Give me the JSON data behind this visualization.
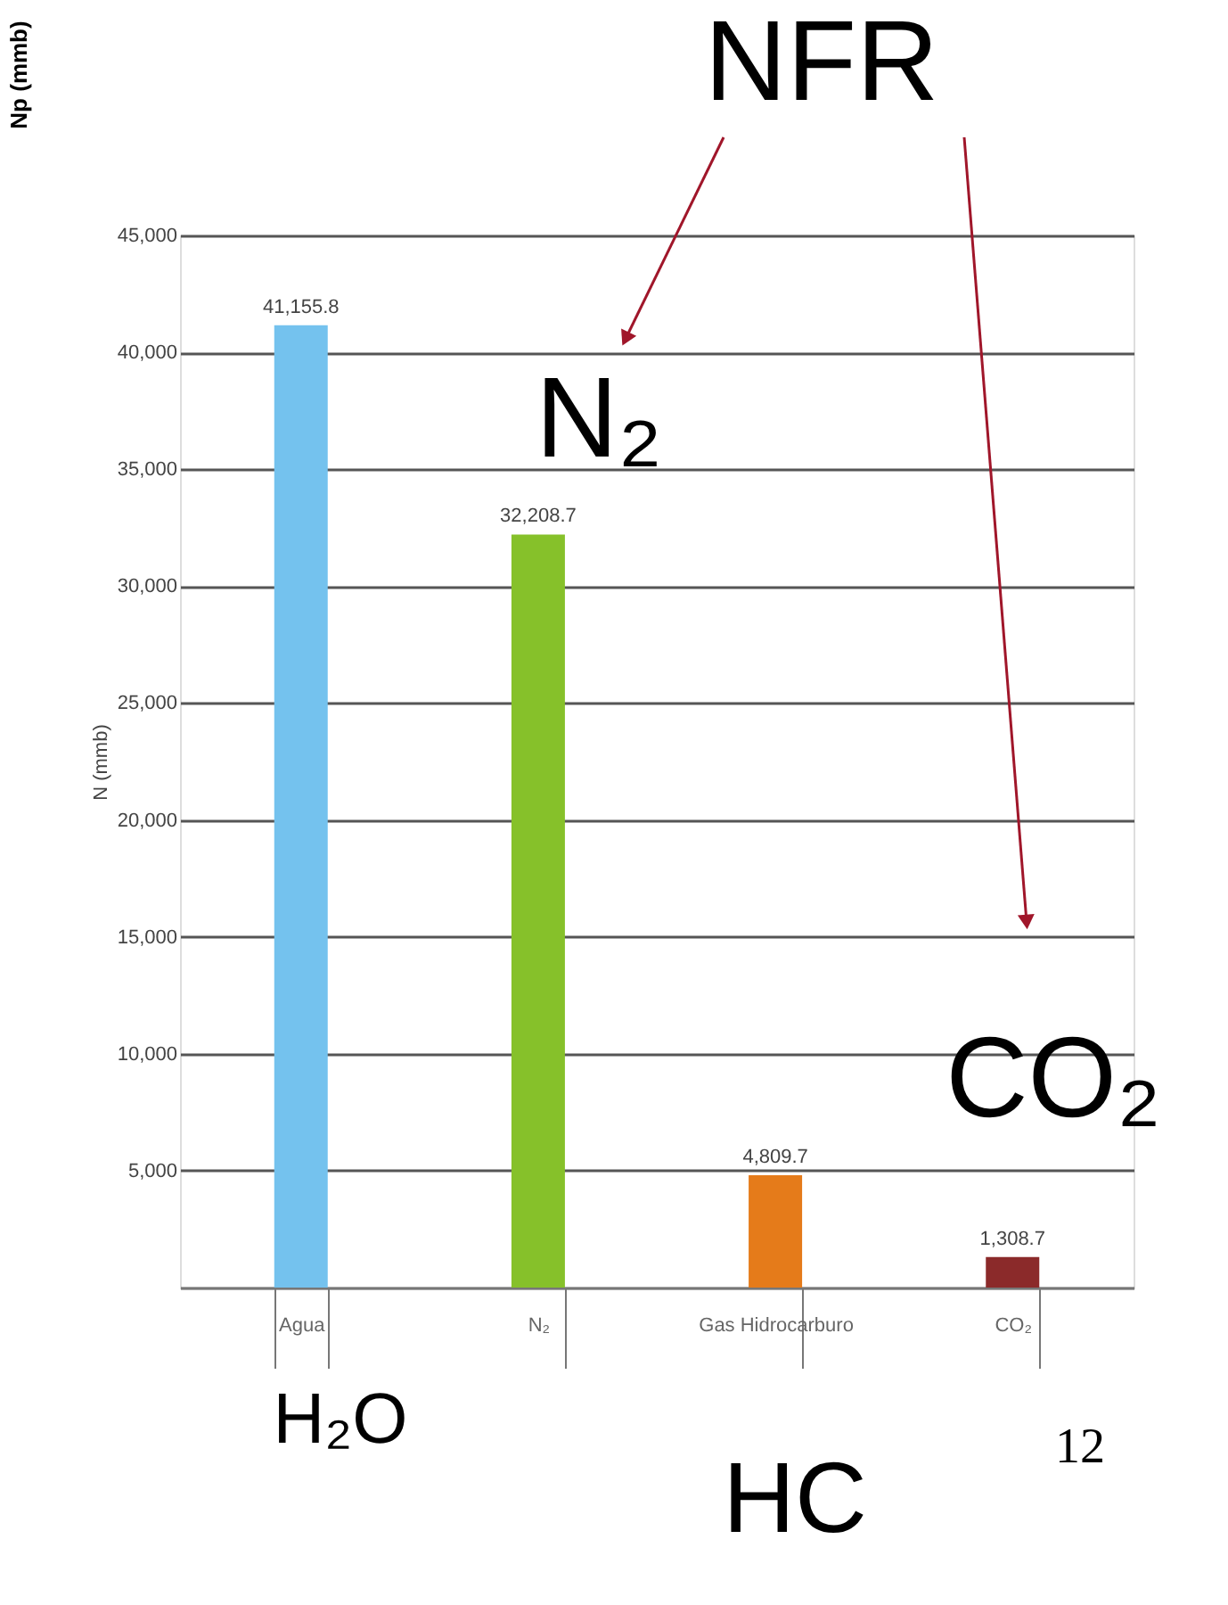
{
  "chart_data": {
    "type": "bar",
    "categories": [
      "Agua",
      "N₂",
      "Gas Hidrocarburo",
      "CO₂"
    ],
    "values": [
      41155.8,
      32208.7,
      4809.7,
      1308.7
    ],
    "value_labels": [
      "41,155.8",
      "32,208.7",
      "4,809.7",
      "1,308.7"
    ],
    "colors": [
      "#74c2ee",
      "#86c12a",
      "#e57b1a",
      "#8b2a2a"
    ],
    "ylabel": "N (mmb)",
    "ylim": [
      0,
      45000
    ],
    "yticks": [
      {
        "value": 0,
        "label": null
      },
      {
        "value": 5000,
        "label": "5,000"
      },
      {
        "value": 10000,
        "label": "10,000"
      },
      {
        "value": 15000,
        "label": "15,000"
      },
      {
        "value": 20000,
        "label": "20,000"
      },
      {
        "value": 25000,
        "label": "25,000"
      },
      {
        "value": 30000,
        "label": "30,000"
      },
      {
        "value": 35000,
        "label": "35,000"
      },
      {
        "value": 40000,
        "label": "40,000"
      },
      {
        "value": 45000,
        "label": "45,000"
      }
    ],
    "grid": "y",
    "annotations": [
      "Np (mmb)",
      "NFR",
      "N₂",
      "CO₂",
      "H₂O",
      "HC",
      "12"
    ]
  }
}
